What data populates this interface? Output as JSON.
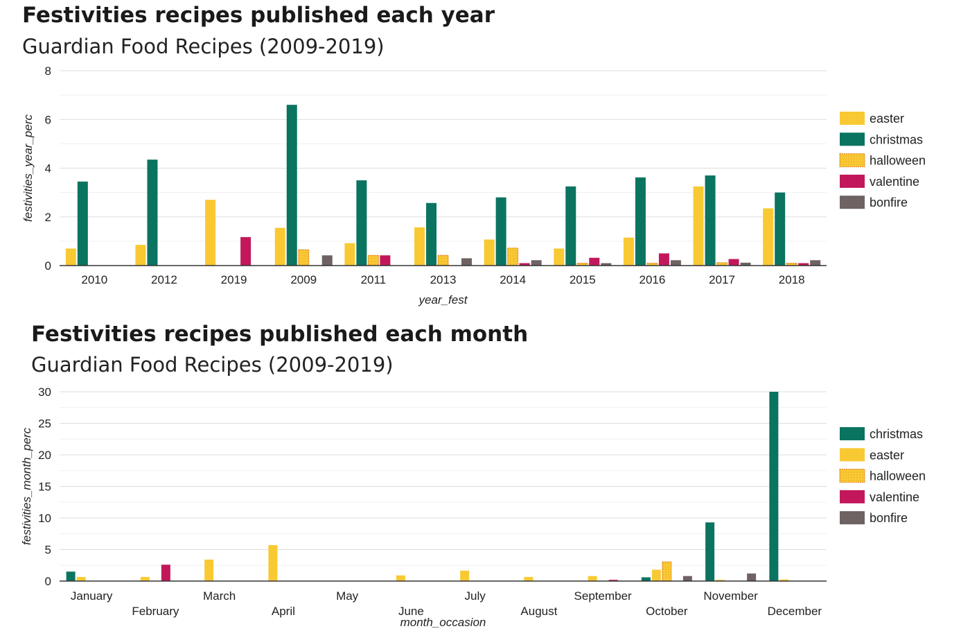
{
  "colors": {
    "easter": "#F9C934",
    "christmas": "#0B7460",
    "halloween": "#F9C934",
    "halloween_border": "#E07A1F",
    "valentine": "#C2185B",
    "bonfire": "#6E6262"
  },
  "chart_data": [
    {
      "type": "bar",
      "title": "Festivities recipes published each year",
      "subtitle": "Guardian Food Recipes (2009-2019)",
      "xlabel": "year_fest",
      "ylabel": "festivities_year_perc",
      "ylim": [
        0,
        8
      ],
      "yticks": [
        0,
        2,
        4,
        6,
        8
      ],
      "grid": true,
      "legend_position": "right",
      "categories": [
        "2010",
        "2012",
        "2019",
        "2009",
        "2011",
        "2013",
        "2014",
        "2015",
        "2016",
        "2017",
        "2018"
      ],
      "series": [
        {
          "name": "easter",
          "values": [
            0.7,
            0.85,
            2.7,
            1.55,
            0.92,
            1.57,
            1.07,
            0.7,
            1.15,
            3.25,
            2.35
          ]
        },
        {
          "name": "christmas",
          "values": [
            3.45,
            4.35,
            0,
            6.6,
            3.5,
            2.57,
            2.8,
            3.25,
            3.62,
            3.7,
            3.0
          ]
        },
        {
          "name": "halloween",
          "values": [
            0,
            0,
            0,
            0.65,
            0.42,
            0.42,
            0.72,
            0.1,
            0.1,
            0.12,
            0.1
          ]
        },
        {
          "name": "valentine",
          "values": [
            0,
            0,
            1.17,
            0,
            0.42,
            0,
            0.1,
            0.32,
            0.5,
            0.27,
            0.1
          ]
        },
        {
          "name": "bonfire",
          "values": [
            0,
            0,
            0,
            0.42,
            0,
            0.3,
            0.22,
            0.1,
            0.22,
            0.12,
            0.22
          ]
        }
      ]
    },
    {
      "type": "bar",
      "title": "Festivities recipes published each month",
      "subtitle": "Guardian Food Recipes (2009-2019)",
      "xlabel": "month_occasion",
      "ylabel": "festivities_month_perc",
      "ylim": [
        0,
        30
      ],
      "yticks": [
        0,
        5,
        10,
        15,
        20,
        25,
        30
      ],
      "grid": true,
      "legend_position": "right",
      "categories": [
        "January",
        "February",
        "March",
        "April",
        "May",
        "June",
        "July",
        "August",
        "September",
        "October",
        "November",
        "December"
      ],
      "series": [
        {
          "name": "christmas",
          "values": [
            1.5,
            0,
            0,
            0,
            0,
            0,
            0,
            0,
            0,
            0.6,
            9.3,
            30.0
          ]
        },
        {
          "name": "easter",
          "values": [
            0.65,
            0.65,
            3.4,
            5.7,
            0,
            0.9,
            1.65,
            0.65,
            0.8,
            1.8,
            0.2,
            0.25
          ]
        },
        {
          "name": "halloween",
          "values": [
            0,
            0,
            0,
            0,
            0,
            0,
            0,
            0,
            0,
            3.05,
            0,
            0
          ]
        },
        {
          "name": "valentine",
          "values": [
            0,
            2.6,
            0,
            0,
            0,
            0,
            0,
            0,
            0.2,
            0,
            0,
            0
          ]
        },
        {
          "name": "bonfire",
          "values": [
            0,
            0,
            0,
            0,
            0,
            0,
            0,
            0,
            0,
            0.8,
            1.2,
            0
          ]
        }
      ]
    }
  ]
}
